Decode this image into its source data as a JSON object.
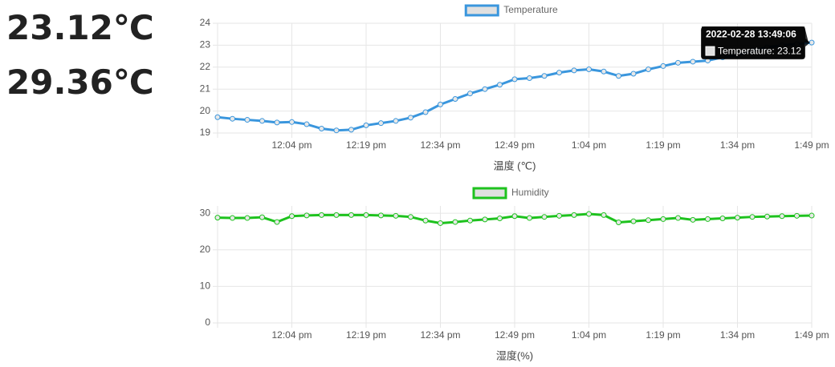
{
  "readings": [
    "23.12℃",
    "29.36℃"
  ],
  "chart_data": [
    {
      "type": "line",
      "xlabel": "温度 (℃)",
      "grid": true,
      "x": [
        "11:49",
        "11:52",
        "11:55",
        "11:58",
        "12:01",
        "12:04",
        "12:07",
        "12:10",
        "12:13",
        "12:16",
        "12:19",
        "12:22",
        "12:25",
        "12:28",
        "12:31",
        "12:34",
        "12:37",
        "12:40",
        "12:43",
        "12:46",
        "12:49",
        "12:52",
        "12:55",
        "12:58",
        "13:01",
        "13:04",
        "13:07",
        "13:10",
        "13:13",
        "13:16",
        "13:19",
        "13:22",
        "13:25",
        "13:28",
        "13:31",
        "13:34",
        "13:37",
        "13:40",
        "13:43",
        "13:46",
        "13:49"
      ],
      "xlim": [
        "11:49",
        "13:49"
      ],
      "xticks": [
        {
          "value": "12:04",
          "label": "12:04 pm"
        },
        {
          "value": "12:19",
          "label": "12:19 pm"
        },
        {
          "value": "12:34",
          "label": "12:34 pm"
        },
        {
          "value": "12:49",
          "label": "12:49 pm"
        },
        {
          "value": "13:04",
          "label": "1:04 pm"
        },
        {
          "value": "13:19",
          "label": "1:19 pm"
        },
        {
          "value": "13:34",
          "label": "1:34 pm"
        },
        {
          "value": "13:49",
          "label": "1:49 pm"
        }
      ],
      "ylim": [
        19,
        24
      ],
      "yticks": [
        19,
        20,
        21,
        22,
        23,
        24
      ],
      "series": [
        {
          "name": "Temperature",
          "color": "#3a96dd",
          "values": [
            19.72,
            19.65,
            19.6,
            19.55,
            19.48,
            19.5,
            19.4,
            19.2,
            19.12,
            19.15,
            19.35,
            19.45,
            19.55,
            19.7,
            19.95,
            20.3,
            20.55,
            20.8,
            21.0,
            21.2,
            21.45,
            21.5,
            21.6,
            21.75,
            21.85,
            21.9,
            21.8,
            21.6,
            21.7,
            21.9,
            22.05,
            22.2,
            22.25,
            22.3,
            22.45,
            22.55,
            22.75,
            22.9,
            23.0,
            23.05,
            23.12
          ]
        }
      ],
      "tooltip": {
        "title": "2022-02-28 13:49:06",
        "label": "Temperature: 23.12"
      }
    },
    {
      "type": "line",
      "xlabel": "湿度(%)",
      "grid": true,
      "x": [
        "11:49",
        "11:52",
        "11:55",
        "11:58",
        "12:01",
        "12:04",
        "12:07",
        "12:10",
        "12:13",
        "12:16",
        "12:19",
        "12:22",
        "12:25",
        "12:28",
        "12:31",
        "12:34",
        "12:37",
        "12:40",
        "12:43",
        "12:46",
        "12:49",
        "12:52",
        "12:55",
        "12:58",
        "13:01",
        "13:04",
        "13:07",
        "13:10",
        "13:13",
        "13:16",
        "13:19",
        "13:22",
        "13:25",
        "13:28",
        "13:31",
        "13:34",
        "13:37",
        "13:40",
        "13:43",
        "13:46",
        "13:49"
      ],
      "xlim": [
        "11:49",
        "13:49"
      ],
      "xticks": [
        {
          "value": "12:04",
          "label": "12:04 pm"
        },
        {
          "value": "12:19",
          "label": "12:19 pm"
        },
        {
          "value": "12:34",
          "label": "12:34 pm"
        },
        {
          "value": "12:49",
          "label": "12:49 pm"
        },
        {
          "value": "13:04",
          "label": "1:04 pm"
        },
        {
          "value": "13:19",
          "label": "1:19 pm"
        },
        {
          "value": "13:34",
          "label": "1:34 pm"
        },
        {
          "value": "13:49",
          "label": "1:49 pm"
        }
      ],
      "ylim": [
        0,
        32
      ],
      "yticks": [
        0,
        10,
        20,
        30
      ],
      "series": [
        {
          "name": "Humidity",
          "color": "#1ec21e",
          "values": [
            28.8,
            28.7,
            28.7,
            28.9,
            27.6,
            29.2,
            29.4,
            29.5,
            29.5,
            29.5,
            29.5,
            29.4,
            29.3,
            29.0,
            28.0,
            27.3,
            27.6,
            28.0,
            28.3,
            28.6,
            29.2,
            28.7,
            29.0,
            29.3,
            29.5,
            29.8,
            29.5,
            27.5,
            27.8,
            28.1,
            28.4,
            28.7,
            28.2,
            28.4,
            28.6,
            28.8,
            29.0,
            29.1,
            29.2,
            29.3,
            29.36
          ]
        }
      ]
    }
  ]
}
